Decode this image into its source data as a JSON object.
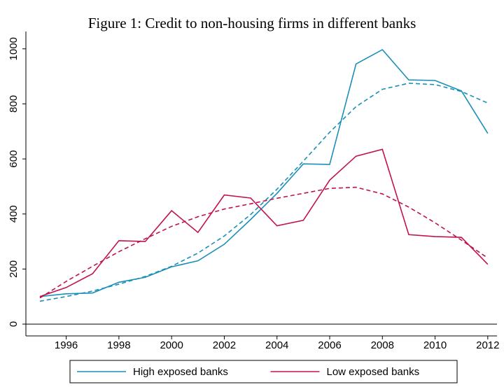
{
  "chart_data": {
    "type": "line",
    "title": "Figure 1: Credit to non-housing firms in different banks",
    "x": [
      1995,
      1996,
      1997,
      1998,
      1999,
      2000,
      2001,
      2002,
      2003,
      2004,
      2005,
      2006,
      2007,
      2008,
      2009,
      2010,
      2011,
      2012
    ],
    "series": [
      {
        "name": "High exposed banks",
        "color": "#1a8fb8",
        "values": [
          100,
          110,
          113,
          152,
          170,
          208,
          230,
          290,
          380,
          475,
          582,
          580,
          945,
          997,
          887,
          885,
          847,
          693
        ]
      },
      {
        "name": "Low exposed banks",
        "color": "#c0144c",
        "values": [
          100,
          133,
          183,
          303,
          300,
          412,
          333,
          469,
          458,
          357,
          377,
          523,
          610,
          635,
          325,
          318,
          315,
          217
        ]
      },
      {
        "color": "#1a8fb8",
        "dash": true,
        "values": [
          83,
          100,
          120,
          145,
          173,
          210,
          258,
          320,
          398,
          490,
          592,
          697,
          790,
          853,
          875,
          870,
          845,
          803
        ]
      },
      {
        "color": "#c0144c",
        "dash": true,
        "values": [
          95,
          155,
          210,
          263,
          310,
          355,
          390,
          418,
          437,
          457,
          475,
          493,
          497,
          473,
          425,
          368,
          305,
          240
        ]
      }
    ],
    "xlim": [
      1994.47,
      2012.35
    ],
    "xticks": [
      1996,
      1998,
      2000,
      2002,
      2004,
      2006,
      2008,
      2010,
      2012
    ],
    "ylim": [
      -43,
      1063
    ],
    "yticks": [
      0,
      200,
      400,
      600,
      800,
      1000
    ],
    "zero_line": true,
    "legend": "bottom"
  }
}
